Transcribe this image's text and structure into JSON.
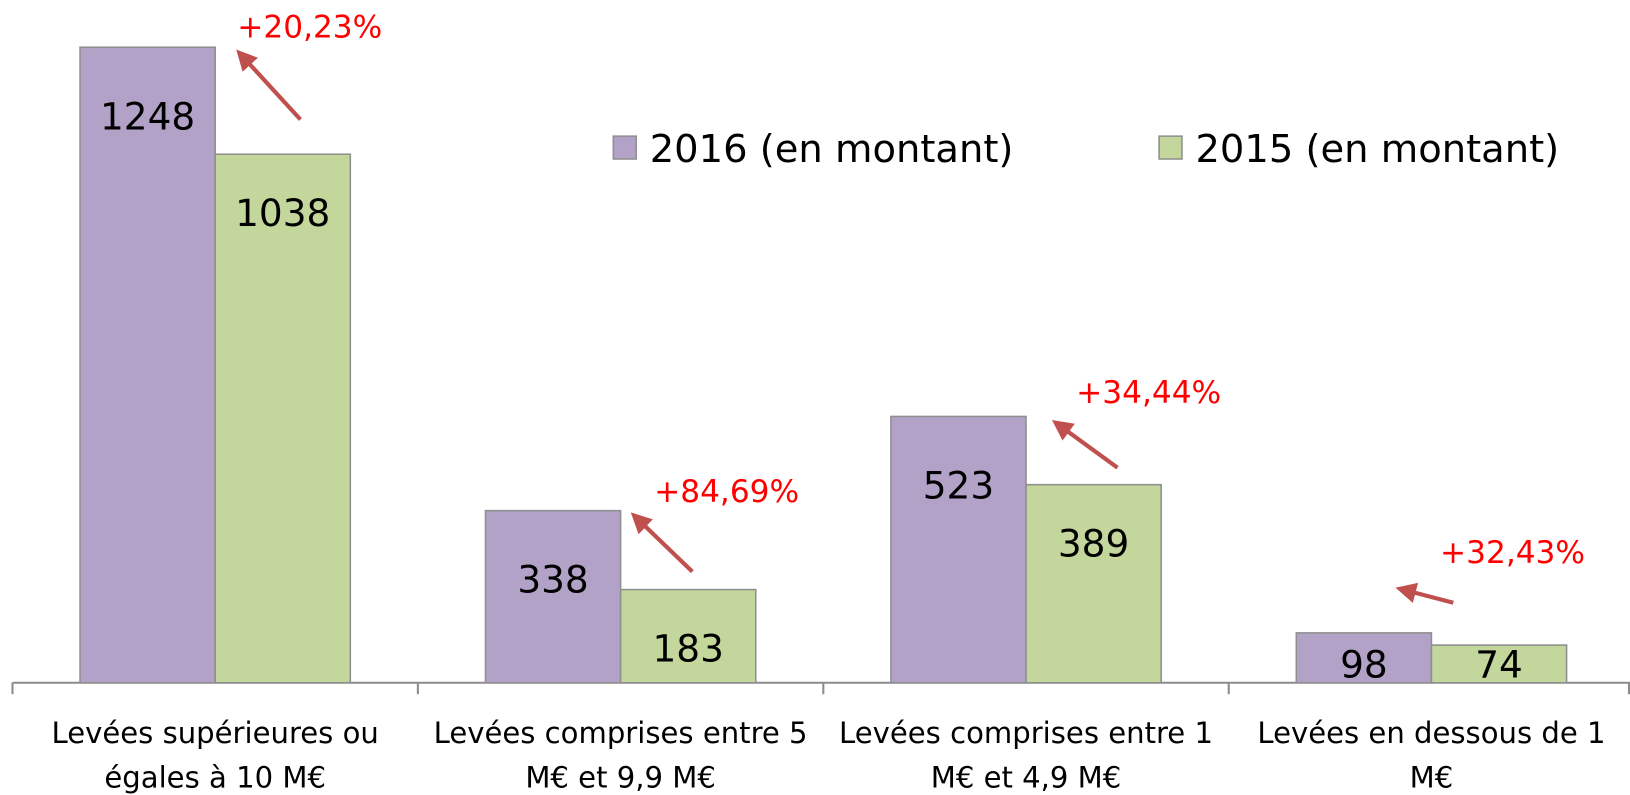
{
  "chart_data": {
    "type": "bar",
    "categories": [
      [
        "Levées supérieures ou",
        "égales à 10 M€"
      ],
      [
        "Levées comprises entre 5",
        "M€ et 9,9 M€"
      ],
      [
        "Levées comprises entre 1",
        "M€ et 4,9 M€"
      ],
      [
        "Levées en dessous de 1",
        "M€"
      ]
    ],
    "series": [
      {
        "name": "2016 (en montant)",
        "color": "#b3a2c7",
        "values": [
          1248,
          338,
          523,
          98
        ]
      },
      {
        "name": "2015 (en montant)",
        "color": "#c3d69b",
        "values": [
          1038,
          183,
          389,
          74
        ]
      }
    ],
    "annotations": [
      "+20,23%",
      "+84,69%",
      "+34,44%",
      "+32,43%"
    ],
    "annotation_color": "#ff0000",
    "ylim": [
      0,
      1340
    ],
    "legend": "top-right"
  }
}
